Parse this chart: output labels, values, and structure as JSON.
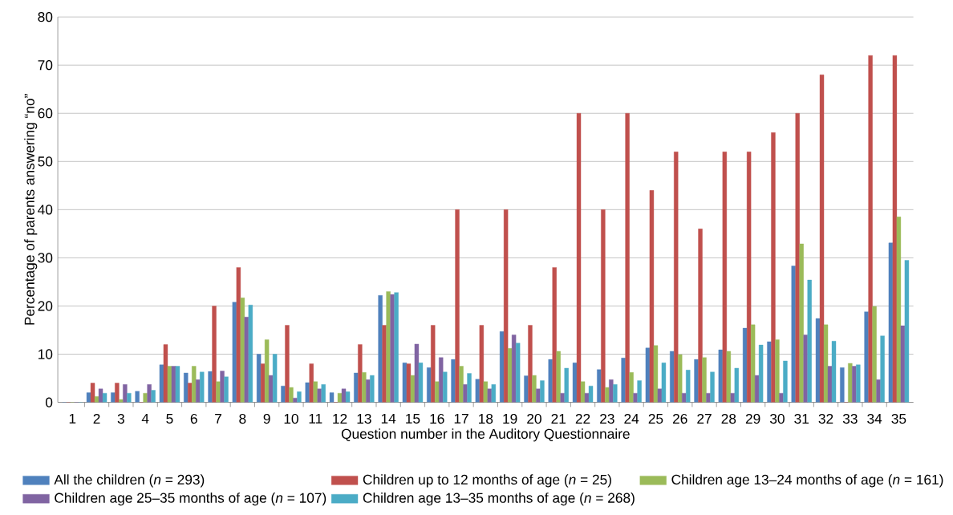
{
  "chart_data": {
    "type": "bar",
    "xlabel": "Question number in the Auditory Questionnaire",
    "ylabel": "Percentage of parents answering “no”",
    "categories": [
      "1",
      "2",
      "3",
      "4",
      "5",
      "6",
      "7",
      "8",
      "9",
      "10",
      "11",
      "12",
      "13",
      "14",
      "15",
      "16",
      "17",
      "18",
      "19",
      "20",
      "21",
      "22",
      "23",
      "24",
      "25",
      "26",
      "27",
      "28",
      "29",
      "30",
      "31",
      "32",
      "33",
      "34",
      "35"
    ],
    "series": [
      {
        "name": "All the children (*n* = 293)",
        "color": "#4f81bd",
        "values": [
          0,
          2,
          2,
          2.3,
          7.8,
          6.1,
          6.4,
          20.8,
          10,
          3.4,
          4.1,
          2,
          6.1,
          22.2,
          8.2,
          7.2,
          8.9,
          4.8,
          14.7,
          5.5,
          8.9,
          8.2,
          6.8,
          9.2,
          11.3,
          10.6,
          8.9,
          10.9,
          15.4,
          12.6,
          28.3,
          17.4,
          7.2,
          18.8,
          33.1
        ]
      },
      {
        "name": "Children up to 12 months of age (*n* = 25)",
        "color": "#c0504d",
        "values": [
          0,
          4,
          4,
          0,
          12,
          4,
          20,
          28,
          8,
          16,
          8,
          0,
          12,
          16,
          8,
          16,
          40,
          16,
          40,
          16,
          28,
          60,
          40,
          60,
          44,
          52,
          36,
          52,
          52,
          56,
          60,
          68,
          0,
          72,
          72
        ]
      },
      {
        "name": "Children age 13–24 months of age (*n* = 161)",
        "color": "#9bbb59",
        "values": [
          0,
          1.2,
          0.6,
          1.9,
          7.5,
          7.5,
          4.3,
          21.7,
          13,
          3.1,
          4.3,
          1.9,
          6.2,
          23,
          5.6,
          4.3,
          7.5,
          4.3,
          11.2,
          5.6,
          10.6,
          4.3,
          3.1,
          6.2,
          11.8,
          9.9,
          9.3,
          10.6,
          16.1,
          13,
          32.9,
          16.1,
          8.1,
          19.9,
          38.5
        ]
      },
      {
        "name": "Children age 25–35 months of age (*n* = 107)",
        "color": "#8064a2",
        "values": [
          0,
          2.8,
          3.7,
          3.7,
          7.5,
          4.7,
          6.5,
          17.7,
          5.6,
          0.9,
          2.8,
          2.8,
          4.7,
          22.4,
          12.1,
          9.3,
          3.7,
          2.8,
          14,
          2.8,
          1.9,
          1.9,
          4.7,
          1.9,
          2.8,
          1.9,
          1.9,
          1.9,
          5.6,
          1.9,
          14,
          7.5,
          7.5,
          4.7,
          15.9
        ]
      },
      {
        "name": "Children age 13–35 months of age (*n* = 268)",
        "color": "#4bacc6",
        "values": [
          0,
          1.9,
          1.9,
          2.5,
          7.5,
          6.3,
          5.3,
          20.2,
          10,
          2.2,
          3.7,
          2.2,
          5.6,
          22.8,
          8.2,
          6.3,
          6,
          3.7,
          12.3,
          4.5,
          7.1,
          3.4,
          3.7,
          4.5,
          8.2,
          6.7,
          6.3,
          7.1,
          11.9,
          8.6,
          25.4,
          12.7,
          7.8,
          13.8,
          29.5
        ]
      }
    ],
    "ylim": [
      0,
      80
    ],
    "yticks": [
      0,
      10,
      20,
      30,
      40,
      50,
      60,
      70,
      80
    ],
    "grid": "y",
    "legend": "bottom"
  }
}
